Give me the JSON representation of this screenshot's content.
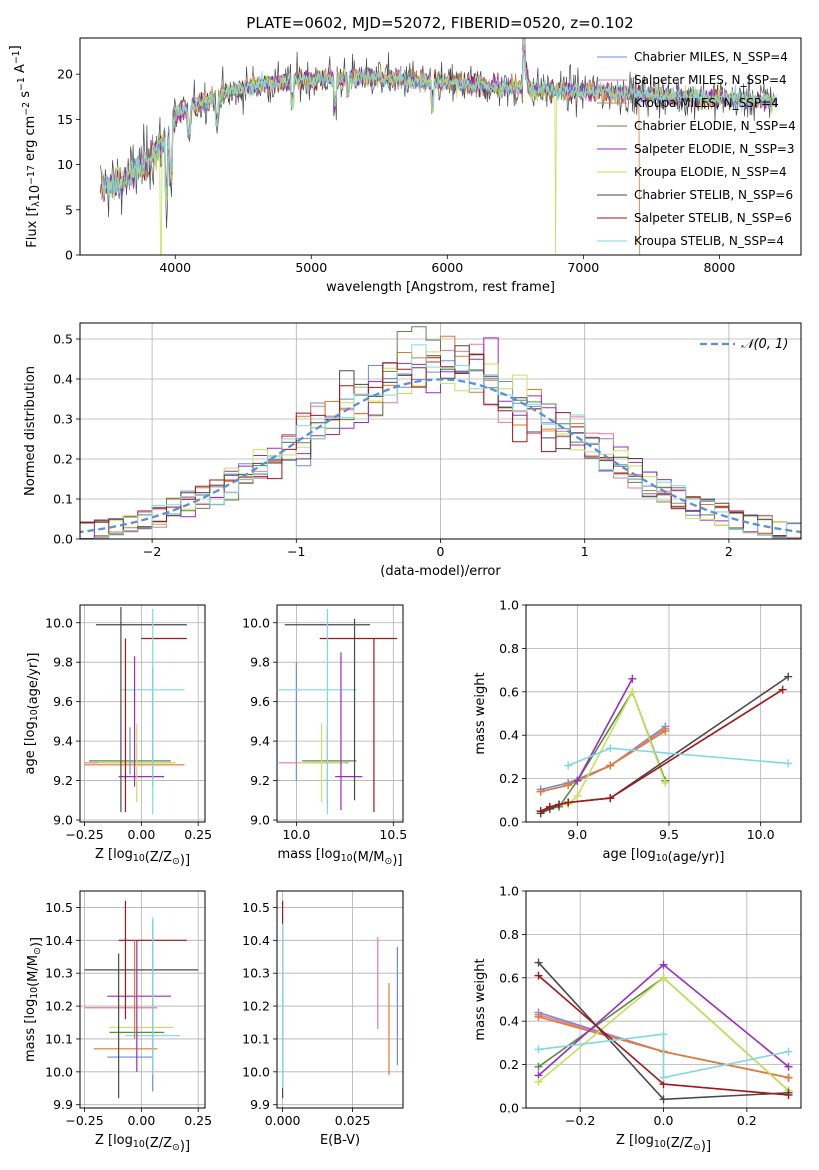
{
  "figure_title": "PLATE=0602, MJD=52072, FIBERID=0520, z=0.102",
  "colors": {
    "Chabrier MILES": "#6a8fd8",
    "Salpeter MILES": "#e8799a",
    "Kroupa MILES": "#e07a2c",
    "Chabrier ELODIE": "#5a8a4a",
    "Salpeter ELODIE": "#9a2cc0",
    "Kroupa ELODIE": "#c8e05a",
    "Chabrier STELIB": "#4a4a4a",
    "Salpeter STELIB": "#a01818",
    "Kroupa STELIB": "#80d8e0"
  },
  "chart_data": [
    {
      "type": "line",
      "panel": "spectrum",
      "xlabel": "wavelength [Angstrom, rest frame]",
      "ylabel": "Flux [f_λ 10^-17 erg cm^-2 s^-1 A^-1]",
      "xlim": [
        3300,
        8600
      ],
      "ylim": [
        0,
        24
      ],
      "xticks": [
        "4000",
        "5000",
        "6000",
        "7000",
        "8000"
      ],
      "yticks": [
        "0",
        "5",
        "10",
        "15",
        "20"
      ],
      "legend_position": "top-right",
      "series": [
        {
          "name": "Chabrier MILES, N_SSP=4"
        },
        {
          "name": "Salpeter MILES, N_SSP=4"
        },
        {
          "name": "Kroupa MILES, N_SSP=4"
        },
        {
          "name": "Chabrier ELODIE, N_SSP=4"
        },
        {
          "name": "Salpeter ELODIE, N_SSP=3"
        },
        {
          "name": "Kroupa ELODIE, N_SSP=4"
        },
        {
          "name": "Chabrier STELIB, N_SSP=6"
        },
        {
          "name": "Salpeter STELIB, N_SSP=6"
        },
        {
          "name": "Kroupa STELIB, N_SSP=4"
        }
      ],
      "continuum": {
        "x": [
          3450,
          3600,
          3800,
          3950,
          4000,
          4200,
          4400,
          4600,
          4800,
          5000,
          5200,
          5400,
          5600,
          5800,
          6000,
          6200,
          6400,
          6600,
          6800,
          7000,
          7200,
          7400,
          7600,
          7800,
          8000,
          8200,
          8400
        ],
        "y": [
          7.5,
          8.0,
          10.5,
          13.0,
          15.5,
          17.0,
          18.0,
          18.8,
          19.2,
          19.5,
          19.6,
          19.7,
          19.5,
          19.3,
          19.0,
          18.8,
          18.6,
          18.4,
          18.2,
          18.1,
          18.0,
          17.8,
          17.6,
          17.4,
          17.3,
          17.2,
          17.1
        ]
      }
    },
    {
      "type": "line",
      "panel": "residual-distribution",
      "xlabel": "(data-model)/error",
      "ylabel": "Normed distribution",
      "xlim": [
        -2.5,
        2.5
      ],
      "ylim": [
        0,
        0.54
      ],
      "xticks": [
        "−2",
        "−1",
        "0",
        "1",
        "2"
      ],
      "yticks": [
        "0.0",
        "0.1",
        "0.2",
        "0.3",
        "0.4",
        "0.5"
      ],
      "grid": true,
      "legend_position": "top-right",
      "reference_curve": {
        "name": "𝒩(0, 1)",
        "mean": 0,
        "sigma": 1
      },
      "hist_bin_width": 0.1
    },
    {
      "type": "scatter",
      "panel": "Z-vs-age",
      "xlabel": "Z [log10(Z/Z⊙)]",
      "ylabel": "age [log10(age/yr)]",
      "xlim": [
        -0.27,
        0.28
      ],
      "ylim": [
        8.99,
        10.09
      ],
      "xticks": [
        "−0.25",
        "0.00",
        "0.25"
      ],
      "yticks": [
        "9.0",
        "9.2",
        "9.4",
        "9.6",
        "9.8",
        "10.0"
      ],
      "grid": true
    },
    {
      "type": "scatter",
      "panel": "mass-vs-age",
      "xlabel": "mass [log10(M/M⊙)]",
      "ylabel": "",
      "xlim": [
        9.9,
        10.55
      ],
      "ylim": [
        8.99,
        10.09
      ],
      "xticks": [
        "10.0",
        "10.5"
      ],
      "yticks": [
        "9.0",
        "9.2",
        "9.4",
        "9.6",
        "9.8",
        "10.0"
      ],
      "grid": true
    },
    {
      "type": "line",
      "panel": "age-vs-massweight",
      "xlabel": "age [log10(age/yr)]",
      "ylabel": "mass weight",
      "xlim": [
        8.72,
        10.22
      ],
      "ylim": [
        0,
        1
      ],
      "xticks": [
        "9.0",
        "9.5",
        "10.0"
      ],
      "yticks": [
        "0.0",
        "0.2",
        "0.4",
        "0.6",
        "0.8",
        "1.0"
      ],
      "grid": true,
      "series": [
        {
          "key": "Chabrier MILES",
          "x": [
            8.8,
            8.95,
            9.18,
            9.48
          ],
          "y": [
            0.15,
            0.18,
            0.26,
            0.44
          ]
        },
        {
          "key": "Salpeter MILES",
          "x": [
            8.8,
            8.95,
            9.18,
            9.48
          ],
          "y": [
            0.14,
            0.17,
            0.26,
            0.43
          ]
        },
        {
          "key": "Kroupa MILES",
          "x": [
            8.8,
            8.95,
            9.18,
            9.48
          ],
          "y": [
            0.14,
            0.17,
            0.26,
            0.42
          ]
        },
        {
          "key": "Chabrier ELODIE",
          "x": [
            8.8,
            8.9,
            9.0,
            9.3,
            9.48
          ],
          "y": [
            0.05,
            0.07,
            0.19,
            0.6,
            0.19
          ]
        },
        {
          "key": "Salpeter ELODIE",
          "x": [
            9.0,
            9.3
          ],
          "y": [
            0.19,
            0.66
          ]
        },
        {
          "key": "Kroupa ELODIE",
          "x": [
            8.95,
            9.0,
            9.3,
            9.48
          ],
          "y": [
            0.08,
            0.12,
            0.6,
            0.18
          ]
        },
        {
          "key": "Chabrier STELIB",
          "x": [
            8.8,
            8.85,
            8.9,
            8.95,
            9.18,
            10.15
          ],
          "y": [
            0.04,
            0.06,
            0.08,
            0.09,
            0.11,
            0.67
          ]
        },
        {
          "key": "Salpeter STELIB",
          "x": [
            8.8,
            8.85,
            8.9,
            8.95,
            9.18,
            10.12
          ],
          "y": [
            0.05,
            0.07,
            0.08,
            0.09,
            0.11,
            0.61
          ]
        },
        {
          "key": "Kroupa STELIB",
          "x": [
            8.95,
            9.18,
            10.15
          ],
          "y": [
            0.26,
            0.34,
            0.27
          ]
        }
      ]
    },
    {
      "type": "scatter",
      "panel": "Z-vs-mass",
      "xlabel": "Z [log10(Z/Z⊙)]",
      "ylabel": "mass [log10(M/M⊙)]",
      "xlim": [
        -0.27,
        0.28
      ],
      "ylim": [
        9.89,
        10.55
      ],
      "xticks": [
        "−0.25",
        "0.00",
        "0.25"
      ],
      "yticks": [
        "9.9",
        "10.0",
        "10.1",
        "10.2",
        "10.3",
        "10.4",
        "10.5"
      ],
      "grid": true
    },
    {
      "type": "scatter",
      "panel": "EBV-vs-mass",
      "xlabel": "E(B-V)",
      "ylabel": "",
      "xlim": [
        -0.002,
        0.043
      ],
      "ylim": [
        9.89,
        10.55
      ],
      "xticks": [
        "0.000",
        "0.025"
      ],
      "yticks": [
        "9.9",
        "10.0",
        "10.1",
        "10.2",
        "10.3",
        "10.4",
        "10.5"
      ],
      "grid": true
    },
    {
      "type": "line",
      "panel": "Z-vs-massweight",
      "xlabel": "Z [log10(Z/Z⊙)]",
      "ylabel": "mass weight",
      "xlim": [
        -0.33,
        0.33
      ],
      "ylim": [
        0,
        1
      ],
      "xticks": [
        "−0.2",
        "0.0",
        "0.2"
      ],
      "yticks": [
        "0.0",
        "0.2",
        "0.4",
        "0.6",
        "0.8",
        "1.0"
      ],
      "grid": true,
      "series": [
        {
          "key": "Chabrier MILES",
          "x": [
            -0.3,
            0.0,
            0.3
          ],
          "y": [
            0.44,
            0.26,
            0.14
          ]
        },
        {
          "key": "Salpeter MILES",
          "x": [
            -0.3,
            0.0,
            0.3
          ],
          "y": [
            0.43,
            0.26,
            0.14
          ]
        },
        {
          "key": "Kroupa MILES",
          "x": [
            -0.3,
            0.0,
            0.3
          ],
          "y": [
            0.42,
            0.26,
            0.14
          ]
        },
        {
          "key": "Chabrier ELODIE",
          "x": [
            -0.3,
            0.0,
            0.3
          ],
          "y": [
            0.19,
            0.6,
            0.08
          ]
        },
        {
          "key": "Salpeter ELODIE",
          "x": [
            -0.3,
            0.0,
            0.3
          ],
          "y": [
            0.15,
            0.66,
            0.19
          ]
        },
        {
          "key": "Kroupa ELODIE",
          "x": [
            -0.3,
            0.0,
            0.3
          ],
          "y": [
            0.12,
            0.6,
            0.08
          ]
        },
        {
          "key": "Chabrier STELIB",
          "x": [
            -0.3,
            0.0,
            0.3
          ],
          "y": [
            0.67,
            0.04,
            0.07
          ]
        },
        {
          "key": "Salpeter STELIB",
          "x": [
            -0.3,
            0.0,
            0.3
          ],
          "y": [
            0.61,
            0.11,
            0.06
          ]
        },
        {
          "key": "Kroupa STELIB",
          "x": [
            -0.3,
            0.0,
            0.0,
            0.3
          ],
          "y": [
            0.27,
            0.34,
            0.14,
            0.26
          ]
        }
      ]
    }
  ]
}
